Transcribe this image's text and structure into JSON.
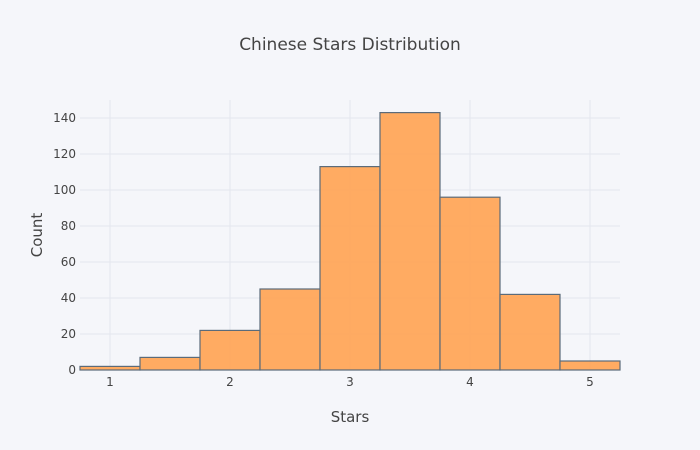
{
  "chart_data": {
    "type": "bar",
    "title": "Chinese Stars Distribution",
    "xlabel": "Stars",
    "ylabel": "Count",
    "bins": [
      {
        "start": 0.75,
        "end": 1.25,
        "count": 2
      },
      {
        "start": 1.25,
        "end": 1.75,
        "count": 7
      },
      {
        "start": 1.75,
        "end": 2.25,
        "count": 22
      },
      {
        "start": 2.25,
        "end": 2.75,
        "count": 45
      },
      {
        "start": 2.75,
        "end": 3.25,
        "count": 113
      },
      {
        "start": 3.25,
        "end": 3.75,
        "count": 143
      },
      {
        "start": 3.75,
        "end": 4.25,
        "count": 96
      },
      {
        "start": 4.25,
        "end": 4.75,
        "count": 42
      },
      {
        "start": 4.75,
        "end": 5.25,
        "count": 5
      }
    ],
    "xlim": [
      0.75,
      5.25
    ],
    "ylim": [
      0,
      150
    ],
    "xticks": [
      "1",
      "2",
      "3",
      "4",
      "5"
    ],
    "yticks": [
      "0",
      "20",
      "40",
      "60",
      "80",
      "100",
      "120",
      "140"
    ],
    "grid": true,
    "colors": {
      "bar_fill": "#ffa65a",
      "bar_stroke": "#5b6b7a",
      "grid": "#e3e6ee",
      "background": "#f5f6fa",
      "text": "#444444"
    }
  }
}
